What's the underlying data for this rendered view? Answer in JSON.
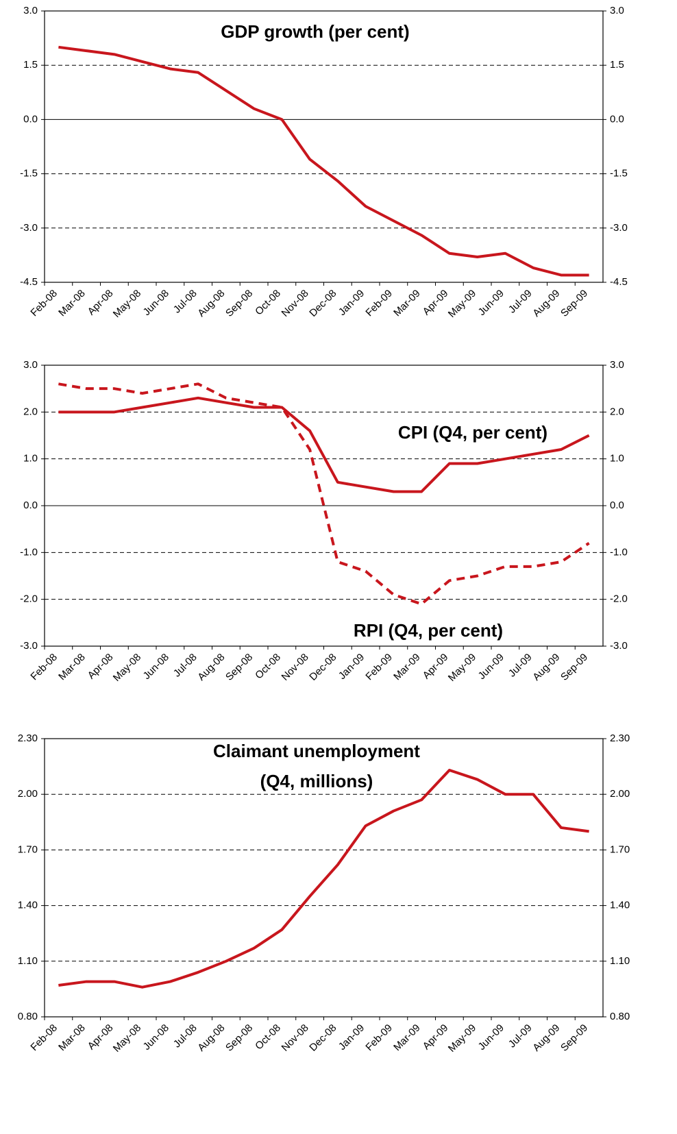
{
  "chart_data": [
    {
      "type": "line",
      "title": "GDP growth (per cent)",
      "categories": [
        "Feb-08",
        "Mar-08",
        "Apr-08",
        "May-08",
        "Jun-08",
        "Jul-08",
        "Aug-08",
        "Sep-08",
        "Oct-08",
        "Nov-08",
        "Dec-08",
        "Jan-09",
        "Feb-09",
        "Mar-09",
        "Apr-09",
        "May-09",
        "Jun-09",
        "Jul-09",
        "Aug-09",
        "Sep-09"
      ],
      "series": [
        {
          "name": "GDP growth",
          "color": "#c8161d",
          "style": "solid",
          "values": [
            2.0,
            1.9,
            1.8,
            1.6,
            1.4,
            1.3,
            0.8,
            0.3,
            0.0,
            -1.1,
            -1.7,
            -2.4,
            -2.8,
            -3.2,
            -3.7,
            -3.8,
            -3.7,
            -4.1,
            -4.3,
            -4.3
          ]
        }
      ],
      "ylim": [
        -4.5,
        3.0
      ],
      "yticks": [
        {
          "value": 3.0,
          "label": "3.0"
        },
        {
          "value": 1.5,
          "label": "1.5"
        },
        {
          "value": 0,
          "label": "0.0"
        },
        {
          "value": -1.5,
          "label": "-1.5"
        },
        {
          "value": -3.0,
          "label": "-3.0"
        },
        {
          "value": -4.5,
          "label": "-4.5"
        }
      ],
      "grid": true
    },
    {
      "type": "line",
      "categories": [
        "Feb-08",
        "Mar-08",
        "Apr-08",
        "May-08",
        "Jun-08",
        "Jul-08",
        "Aug-08",
        "Sep-08",
        "Oct-08",
        "Nov-08",
        "Dec-08",
        "Jan-09",
        "Feb-09",
        "Mar-09",
        "Apr-09",
        "May-09",
        "Jun-09",
        "Jul-09",
        "Aug-09",
        "Sep-09"
      ],
      "series": [
        {
          "name": "CPI (Q4, per cent)",
          "color": "#c8161d",
          "style": "solid",
          "values": [
            2.0,
            2.0,
            2.0,
            2.1,
            2.2,
            2.3,
            2.2,
            2.1,
            2.1,
            1.6,
            0.5,
            0.4,
            0.3,
            0.3,
            0.9,
            0.9,
            1.0,
            1.1,
            1.2,
            1.5
          ]
        },
        {
          "name": "RPI (Q4, per cent)",
          "color": "#c8161d",
          "style": "dashed",
          "values": [
            2.6,
            2.5,
            2.5,
            2.4,
            2.5,
            2.6,
            2.3,
            2.2,
            2.1,
            1.2,
            -1.2,
            -1.4,
            -1.9,
            -2.1,
            -1.6,
            -1.5,
            -1.3,
            -1.3,
            -1.2,
            -0.8
          ]
        }
      ],
      "ylim": [
        -3.0,
        3.0
      ],
      "yticks": [
        {
          "value": 3.0,
          "label": "3.0"
        },
        {
          "value": 2.0,
          "label": "2.0"
        },
        {
          "value": 1.0,
          "label": "1.0"
        },
        {
          "value": 0,
          "label": "0.0"
        },
        {
          "value": -1.0,
          "label": "-1.0"
        },
        {
          "value": -2.0,
          "label": "-2.0"
        },
        {
          "value": -3.0,
          "label": "-3.0"
        }
      ],
      "grid": true
    },
    {
      "type": "line",
      "title": "Claimant unemployment",
      "subtitle": "(Q4, millions)",
      "categories": [
        "Feb-08",
        "Mar-08",
        "Apr-08",
        "May-08",
        "Jun-08",
        "Jul-08",
        "Aug-08",
        "Sep-08",
        "Oct-08",
        "Nov-08",
        "Dec-08",
        "Jan-09",
        "Feb-09",
        "Mar-09",
        "Apr-09",
        "May-09",
        "Jun-09",
        "Jul-09",
        "Aug-09",
        "Sep-09"
      ],
      "series": [
        {
          "name": "Claimant unemployment",
          "color": "#c8161d",
          "style": "solid",
          "values": [
            0.97,
            0.99,
            0.99,
            0.96,
            0.99,
            1.04,
            1.1,
            1.17,
            1.27,
            1.45,
            1.62,
            1.83,
            1.91,
            1.97,
            2.13,
            2.08,
            2.0,
            2.0,
            1.82,
            1.8
          ]
        }
      ],
      "ylim": [
        0.8,
        2.3
      ],
      "yticks": [
        {
          "value": 2.3,
          "label": "2.30"
        },
        {
          "value": 2.0,
          "label": "2.00"
        },
        {
          "value": 1.7,
          "label": "1.70"
        },
        {
          "value": 1.4,
          "label": "1.40"
        },
        {
          "value": 1.1,
          "label": "1.10"
        },
        {
          "value": 0.8,
          "label": "0.80"
        }
      ],
      "grid": true
    }
  ]
}
